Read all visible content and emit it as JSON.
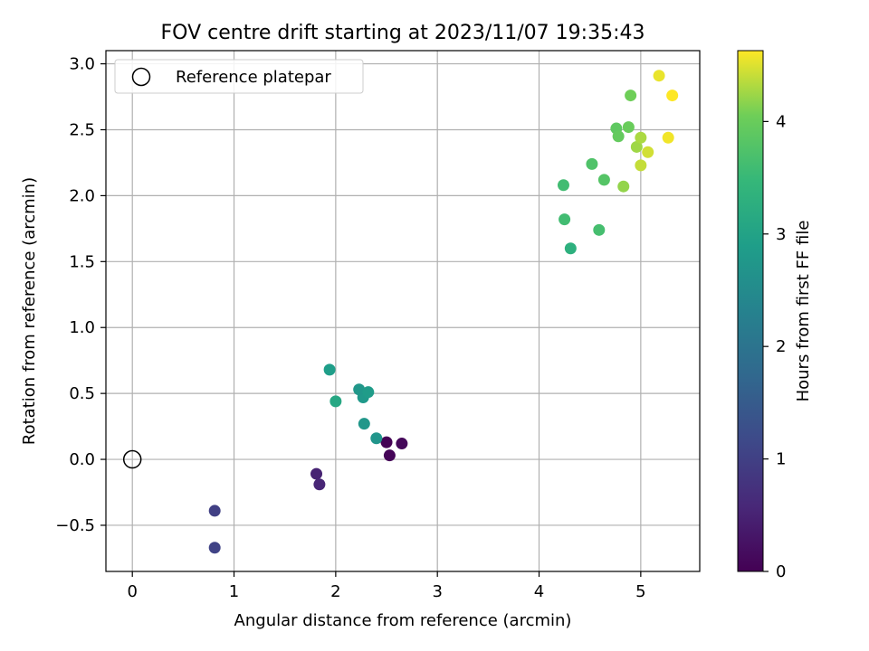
{
  "chart_data": {
    "type": "scatter",
    "title": "FOV centre drift starting at 2023/11/07 19:35:43",
    "xlabel": "Angular distance from reference (arcmin)",
    "ylabel": "Rotation from reference (arcmin)",
    "xlim": [
      -0.26,
      5.58
    ],
    "ylim": [
      -0.85,
      3.1
    ],
    "xticks": [
      0,
      1,
      2,
      3,
      4,
      5
    ],
    "xtick_labels": [
      "0",
      "1",
      "2",
      "3",
      "4",
      "5"
    ],
    "yticks": [
      -0.5,
      0.0,
      0.5,
      1.0,
      1.5,
      2.0,
      2.5,
      3.0
    ],
    "ytick_labels": [
      "−0.5",
      "0.0",
      "0.5",
      "1.0",
      "1.5",
      "2.0",
      "2.5",
      "3.0"
    ],
    "grid": true,
    "legend": {
      "position": "top-left",
      "entries": [
        {
          "label": "Reference platepar",
          "marker": "open-circle"
        }
      ]
    },
    "reference_point": {
      "x": 0.0,
      "y": 0.0
    },
    "colorbar": {
      "label": "Hours from first FF file",
      "range": [
        0,
        4.63
      ],
      "ticks": [
        0,
        1,
        2,
        3,
        4
      ],
      "tick_labels": [
        "0",
        "1",
        "2",
        "3",
        "4"
      ],
      "colormap": "viridis"
    },
    "series": [
      {
        "name": "FOV centre",
        "points": [
          {
            "x": 2.5,
            "y": 0.13,
            "c": 0.0
          },
          {
            "x": 2.53,
            "y": 0.03,
            "c": 0.05
          },
          {
            "x": 2.65,
            "y": 0.12,
            "c": 0.1
          },
          {
            "x": 1.81,
            "y": -0.11,
            "c": 0.5
          },
          {
            "x": 1.84,
            "y": -0.19,
            "c": 0.55
          },
          {
            "x": 0.81,
            "y": -0.39,
            "c": 1.0
          },
          {
            "x": 0.81,
            "y": -0.67,
            "c": 1.05
          },
          {
            "x": 2.4,
            "y": 0.16,
            "c": 2.7
          },
          {
            "x": 2.28,
            "y": 0.27,
            "c": 2.75
          },
          {
            "x": 2.27,
            "y": 0.47,
            "c": 2.8
          },
          {
            "x": 2.23,
            "y": 0.53,
            "c": 2.75
          },
          {
            "x": 2.32,
            "y": 0.51,
            "c": 2.85
          },
          {
            "x": 1.94,
            "y": 0.68,
            "c": 2.9
          },
          {
            "x": 2.0,
            "y": 0.44,
            "c": 3.1
          },
          {
            "x": 4.31,
            "y": 1.6,
            "c": 3.3
          },
          {
            "x": 4.25,
            "y": 1.82,
            "c": 3.6
          },
          {
            "x": 4.59,
            "y": 1.74,
            "c": 3.65
          },
          {
            "x": 4.24,
            "y": 2.08,
            "c": 3.6
          },
          {
            "x": 4.52,
            "y": 2.24,
            "c": 3.75
          },
          {
            "x": 4.64,
            "y": 2.12,
            "c": 3.8
          },
          {
            "x": 4.76,
            "y": 2.51,
            "c": 3.9
          },
          {
            "x": 4.78,
            "y": 2.45,
            "c": 3.95
          },
          {
            "x": 4.88,
            "y": 2.52,
            "c": 4.0
          },
          {
            "x": 4.9,
            "y": 2.76,
            "c": 4.05
          },
          {
            "x": 4.83,
            "y": 2.07,
            "c": 4.2
          },
          {
            "x": 4.96,
            "y": 2.37,
            "c": 4.25
          },
          {
            "x": 5.0,
            "y": 2.44,
            "c": 4.3
          },
          {
            "x": 5.0,
            "y": 2.23,
            "c": 4.4
          },
          {
            "x": 5.07,
            "y": 2.33,
            "c": 4.45
          },
          {
            "x": 5.18,
            "y": 2.91,
            "c": 4.55
          },
          {
            "x": 5.27,
            "y": 2.44,
            "c": 4.58
          },
          {
            "x": 5.31,
            "y": 2.76,
            "c": 4.63
          }
        ]
      }
    ]
  }
}
